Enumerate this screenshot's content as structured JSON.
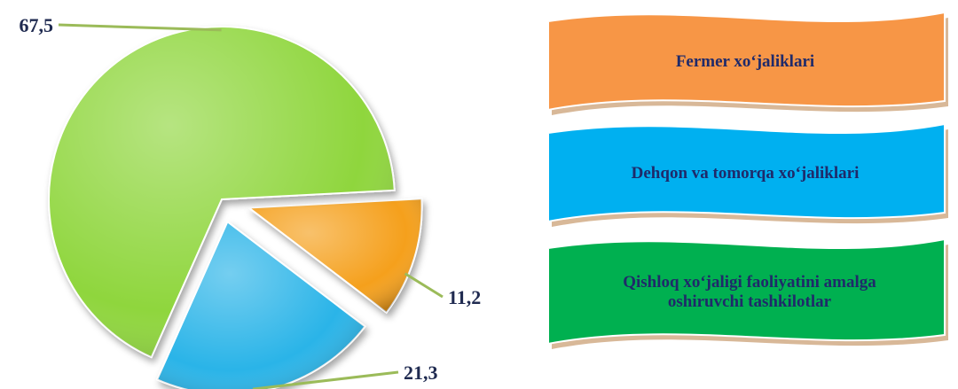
{
  "chart_data": {
    "type": "pie",
    "categories": [
      "Fermer xo‘jaliklari",
      "Dehqon va tomorqa xo‘jaliklari",
      "Qishloq xo‘jaligi faoliyatini amalga oshiruvchi tashkilotlar"
    ],
    "values": [
      11.2,
      21.3,
      67.5
    ],
    "value_labels": [
      "11,2",
      "21,3",
      "67,5"
    ],
    "colors": [
      "#f5a01a",
      "#2cb4e8",
      "#8fd63c"
    ],
    "legend_colors": [
      "#f79646",
      "#00b0f0",
      "#00b050"
    ]
  }
}
